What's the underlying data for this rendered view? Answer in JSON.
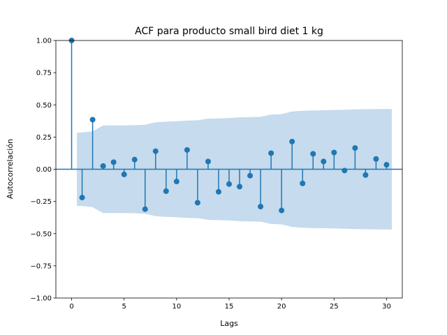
{
  "chart_data": {
    "type": "stem",
    "title": "ACF para producto small bird diet 1 kg",
    "xlabel": "Lags",
    "ylabel": "Autocorrelación",
    "xlim": [
      -1.5,
      31.5
    ],
    "ylim": [
      -1.0,
      1.0
    ],
    "xticks": [
      0,
      5,
      10,
      15,
      20,
      25,
      30
    ],
    "yticks": [
      "-1.00",
      "-0.75",
      "-0.50",
      "-0.25",
      "0.00",
      "0.25",
      "0.50",
      "0.75",
      "1.00"
    ],
    "grid": false,
    "lags": [
      0,
      1,
      2,
      3,
      4,
      5,
      6,
      7,
      8,
      9,
      10,
      11,
      12,
      13,
      14,
      15,
      16,
      17,
      18,
      19,
      20,
      21,
      22,
      23,
      24,
      25,
      26,
      27,
      28,
      29,
      30
    ],
    "values": [
      1.0,
      -0.22,
      0.385,
      0.025,
      0.055,
      -0.04,
      0.075,
      -0.31,
      0.14,
      -0.17,
      -0.095,
      0.15,
      -0.26,
      0.06,
      -0.175,
      -0.115,
      -0.135,
      -0.05,
      -0.29,
      0.125,
      -0.32,
      0.215,
      -0.11,
      0.12,
      0.06,
      0.13,
      -0.01,
      0.165,
      -0.045,
      0.08,
      0.035
    ],
    "confint_upper": [
      0,
      0.285,
      0.295,
      0.34,
      0.34,
      0.34,
      0.342,
      0.345,
      0.365,
      0.37,
      0.373,
      0.378,
      0.38,
      0.393,
      0.395,
      0.398,
      0.403,
      0.405,
      0.407,
      0.425,
      0.428,
      0.448,
      0.455,
      0.457,
      0.458,
      0.46,
      0.462,
      0.465,
      0.466,
      0.467,
      0.468
    ],
    "colors": {
      "stem": "#1f77b4",
      "band": "#c6dbed",
      "baseline": "#1f77b4"
    }
  }
}
